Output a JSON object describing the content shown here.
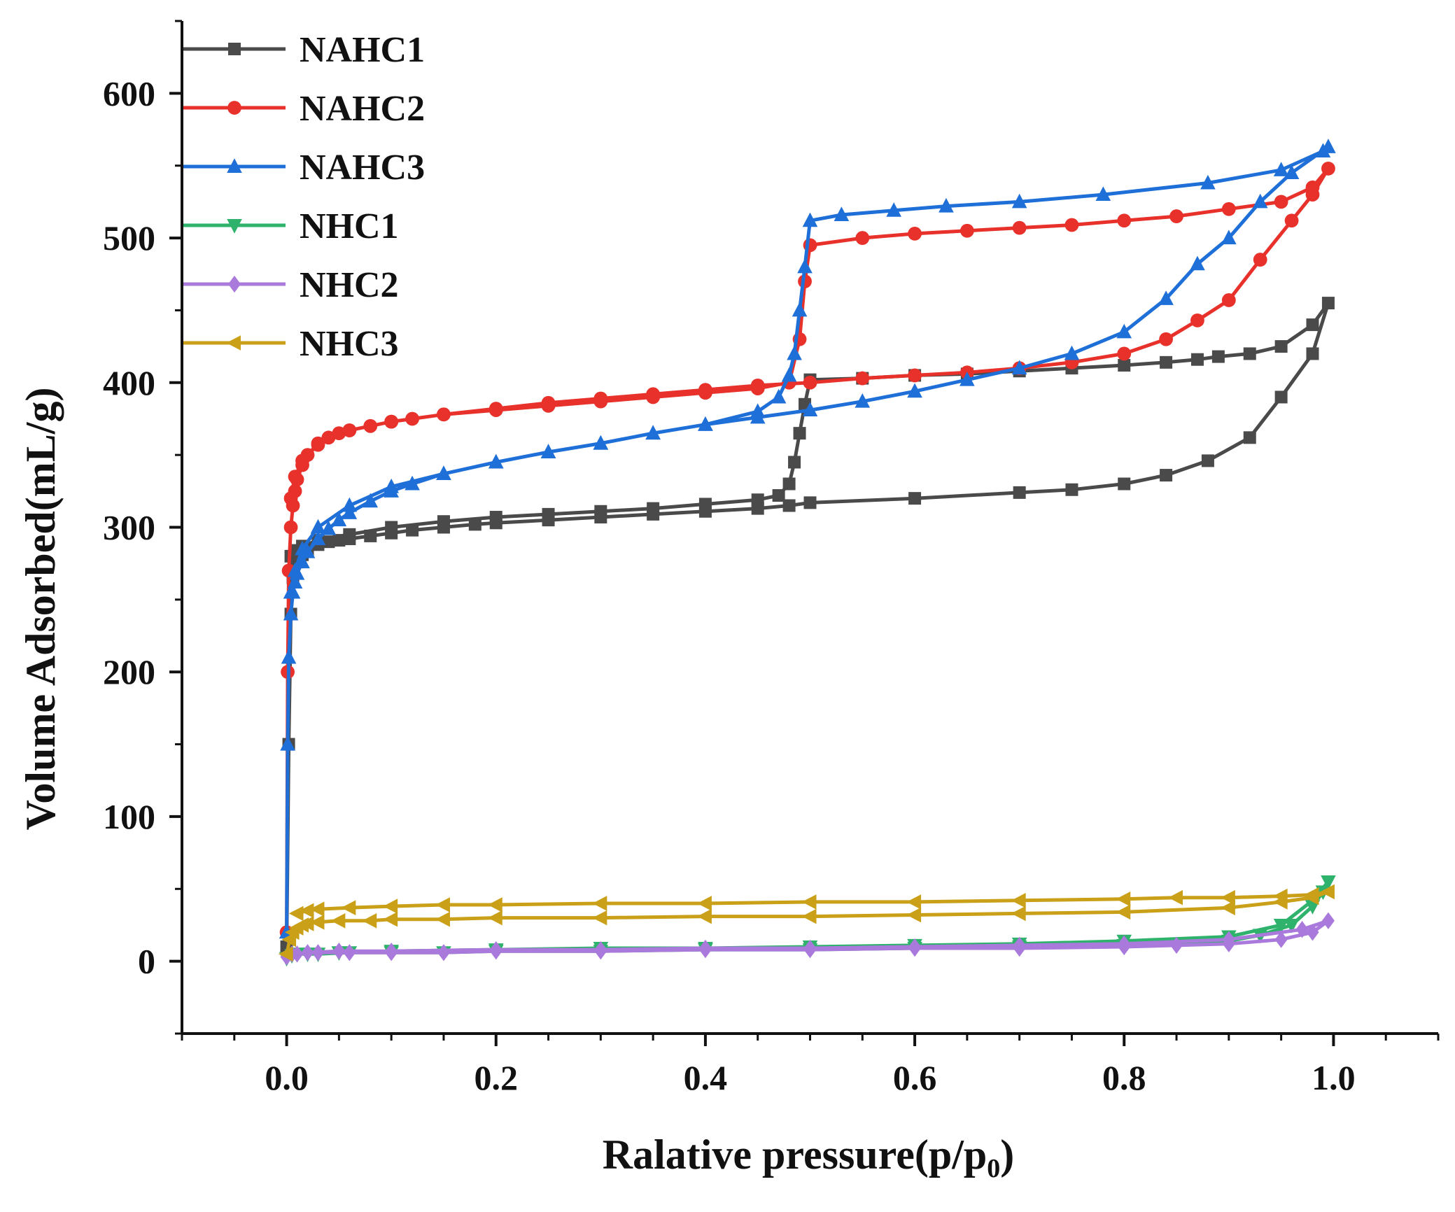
{
  "chart_data": {
    "type": "line",
    "title": "",
    "xlabel": "Ralative pressure(p/p",
    "xlabel_sub": "0",
    "xlabel_end": ")",
    "ylabel": "Volume Adsorbed(mL/g)",
    "xlim": [
      -0.1,
      1.1
    ],
    "ylim": [
      -50,
      650
    ],
    "x_ticks": [
      0.0,
      0.2,
      0.4,
      0.6,
      0.8,
      1.0
    ],
    "x_tick_labels": [
      "0.0",
      "0.2",
      "0.4",
      "0.6",
      "0.8",
      "1.0"
    ],
    "y_ticks": [
      0,
      100,
      200,
      300,
      400,
      500,
      600
    ],
    "y_tick_labels": [
      "0",
      "100",
      "200",
      "300",
      "400",
      "500",
      "600"
    ],
    "grid": false,
    "legend_position": "top-left",
    "series": [
      {
        "name": "NAHC1",
        "color": "#4a4a4a",
        "marker": "square",
        "x": [
          0.0,
          0.002,
          0.004,
          0.006,
          0.01,
          0.015,
          0.02,
          0.03,
          0.04,
          0.05,
          0.06,
          0.08,
          0.1,
          0.12,
          0.15,
          0.18,
          0.2,
          0.25,
          0.3,
          0.35,
          0.4,
          0.45,
          0.48,
          0.5,
          0.6,
          0.7,
          0.75,
          0.8,
          0.84,
          0.88,
          0.92,
          0.95,
          0.98,
          0.995,
          0.98,
          0.95,
          0.92,
          0.89,
          0.87,
          0.84,
          0.8,
          0.75,
          0.7,
          0.65,
          0.6,
          0.55,
          0.5,
          0.495,
          0.49,
          0.485,
          0.48,
          0.47,
          0.45,
          0.4,
          0.35,
          0.3,
          0.25,
          0.2,
          0.15,
          0.1,
          0.06,
          0.03,
          0.015,
          0.008,
          0.004
        ],
        "y": [
          10,
          150,
          240,
          265,
          276,
          281,
          284,
          288,
          290,
          291,
          292,
          294,
          296,
          298,
          300,
          302,
          303,
          305,
          307,
          309,
          311,
          313,
          315,
          317,
          320,
          324,
          326,
          330,
          336,
          346,
          362,
          390,
          420,
          455,
          440,
          425,
          420,
          418,
          416,
          414,
          412,
          410,
          408,
          406,
          405,
          403,
          402,
          385,
          365,
          345,
          330,
          322,
          319,
          316,
          313,
          311,
          309,
          307,
          304,
          300,
          295,
          291,
          287,
          284,
          280
        ]
      },
      {
        "name": "NAHC2",
        "color": "#e8312a",
        "marker": "circle",
        "x": [
          0.0,
          0.001,
          0.002,
          0.004,
          0.006,
          0.008,
          0.01,
          0.015,
          0.02,
          0.03,
          0.04,
          0.05,
          0.06,
          0.08,
          0.1,
          0.12,
          0.15,
          0.2,
          0.25,
          0.3,
          0.35,
          0.4,
          0.45,
          0.48,
          0.49,
          0.495,
          0.5,
          0.55,
          0.6,
          0.65,
          0.7,
          0.75,
          0.8,
          0.85,
          0.9,
          0.95,
          0.98,
          0.995,
          0.98,
          0.96,
          0.93,
          0.9,
          0.87,
          0.84,
          0.8,
          0.75,
          0.7,
          0.65,
          0.6,
          0.55,
          0.5,
          0.45,
          0.4,
          0.35,
          0.3,
          0.25,
          0.2,
          0.15,
          0.1,
          0.06,
          0.03,
          0.015,
          0.008,
          0.004
        ],
        "y": [
          20,
          200,
          270,
          300,
          315,
          325,
          333,
          343,
          350,
          357,
          362,
          365,
          367,
          370,
          373,
          375,
          378,
          381,
          384,
          387,
          390,
          393,
          396,
          400,
          430,
          470,
          495,
          500,
          503,
          505,
          507,
          509,
          512,
          515,
          520,
          525,
          535,
          548,
          530,
          512,
          485,
          457,
          443,
          430,
          420,
          414,
          410,
          407,
          405,
          403,
          400,
          398,
          395,
          392,
          389,
          386,
          382,
          378,
          373,
          367,
          358,
          346,
          335,
          320
        ]
      },
      {
        "name": "NAHC3",
        "color": "#1f6fd8",
        "marker": "triangle-up",
        "x": [
          0.0,
          0.001,
          0.002,
          0.004,
          0.006,
          0.008,
          0.01,
          0.015,
          0.02,
          0.03,
          0.04,
          0.05,
          0.06,
          0.08,
          0.1,
          0.12,
          0.15,
          0.2,
          0.25,
          0.3,
          0.35,
          0.4,
          0.45,
          0.47,
          0.48,
          0.485,
          0.49,
          0.495,
          0.5,
          0.53,
          0.58,
          0.63,
          0.7,
          0.78,
          0.88,
          0.95,
          0.99,
          0.995,
          0.96,
          0.93,
          0.9,
          0.87,
          0.84,
          0.8,
          0.75,
          0.7,
          0.65,
          0.6,
          0.55,
          0.5,
          0.45,
          0.4,
          0.35,
          0.3,
          0.25,
          0.2,
          0.15,
          0.1,
          0.06,
          0.03,
          0.015,
          0.008,
          0.004
        ],
        "y": [
          20,
          150,
          210,
          240,
          255,
          262,
          268,
          276,
          283,
          292,
          299,
          305,
          310,
          318,
          325,
          330,
          337,
          345,
          352,
          358,
          365,
          371,
          380,
          390,
          405,
          420,
          450,
          480,
          512,
          516,
          519,
          522,
          525,
          530,
          538,
          547,
          560,
          563,
          545,
          525,
          500,
          482,
          458,
          435,
          420,
          410,
          402,
          394,
          387,
          381,
          376,
          371,
          365,
          358,
          352,
          345,
          337,
          328,
          315,
          300,
          285,
          270,
          255
        ]
      },
      {
        "name": "NHC1",
        "color": "#2fb26b",
        "marker": "triangle-down",
        "x": [
          0.0,
          0.005,
          0.01,
          0.03,
          0.06,
          0.1,
          0.15,
          0.2,
          0.3,
          0.4,
          0.5,
          0.6,
          0.7,
          0.8,
          0.85,
          0.9,
          0.93,
          0.96,
          0.98,
          0.99,
          0.995,
          0.98,
          0.95,
          0.9,
          0.8,
          0.7,
          0.6,
          0.5,
          0.4,
          0.3,
          0.2,
          0.1,
          0.05,
          0.02
        ],
        "y": [
          2,
          4,
          5,
          5,
          6,
          6,
          6,
          7,
          7,
          8,
          8,
          9,
          10,
          11,
          12,
          14,
          18,
          25,
          38,
          48,
          55,
          42,
          25,
          17,
          14,
          12,
          11,
          10,
          9,
          9,
          8,
          7,
          6,
          5
        ]
      },
      {
        "name": "NHC2",
        "color": "#a979dc",
        "marker": "diamond",
        "x": [
          0.0,
          0.005,
          0.01,
          0.03,
          0.06,
          0.1,
          0.15,
          0.2,
          0.3,
          0.4,
          0.5,
          0.6,
          0.7,
          0.8,
          0.85,
          0.9,
          0.95,
          0.98,
          0.995,
          0.97,
          0.9,
          0.8,
          0.7,
          0.6,
          0.5,
          0.4,
          0.3,
          0.2,
          0.1,
          0.05,
          0.02
        ],
        "y": [
          3,
          5,
          5,
          6,
          6,
          6,
          6,
          7,
          7,
          8,
          8,
          9,
          9,
          10,
          11,
          12,
          15,
          20,
          28,
          22,
          15,
          12,
          11,
          10,
          9,
          9,
          8,
          8,
          7,
          7,
          6
        ]
      },
      {
        "name": "NHC3",
        "color": "#c9a018",
        "marker": "triangle-left",
        "x": [
          0.0,
          0.003,
          0.006,
          0.01,
          0.015,
          0.02,
          0.03,
          0.05,
          0.08,
          0.1,
          0.15,
          0.2,
          0.3,
          0.4,
          0.5,
          0.6,
          0.7,
          0.8,
          0.9,
          0.95,
          0.98,
          0.995,
          0.98,
          0.95,
          0.9,
          0.85,
          0.8,
          0.7,
          0.6,
          0.5,
          0.4,
          0.3,
          0.2,
          0.15,
          0.1,
          0.06,
          0.03,
          0.02,
          0.01
        ],
        "y": [
          5,
          15,
          20,
          23,
          25,
          26,
          27,
          28,
          28,
          29,
          29,
          30,
          30,
          31,
          31,
          32,
          33,
          34,
          37,
          41,
          44,
          48,
          46,
          45,
          44,
          44,
          43,
          42,
          41,
          41,
          40,
          40,
          39,
          39,
          38,
          37,
          36,
          35,
          33
        ]
      }
    ]
  }
}
